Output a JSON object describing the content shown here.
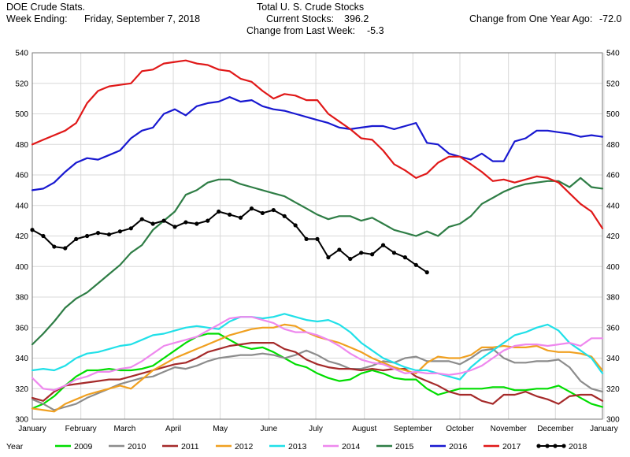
{
  "header": {
    "left_line1": "DOE Crude Stats.",
    "left_line2_label": "Week Ending:",
    "left_line2_value": "Friday, September 7, 2018",
    "center_line1": "Total U. S. Crude Stocks",
    "current_label": "Current Stocks:",
    "current_value": "396.2",
    "change_week_label": "Change from Last Week:",
    "change_week_value": "-5.3",
    "change_year_label": "Change from One Year Ago:",
    "change_year_value": "-72.0"
  },
  "chart_data": {
    "type": "line",
    "x_domain": [
      1,
      53
    ],
    "ylim": [
      300,
      540
    ],
    "y_ticks": [
      300,
      320,
      340,
      360,
      380,
      400,
      420,
      440,
      460,
      480,
      500,
      520,
      540
    ],
    "x_tick_labels": [
      "January",
      "February",
      "March",
      "April",
      "May",
      "June",
      "July",
      "August",
      "September",
      "October",
      "November",
      "December",
      "January"
    ],
    "x_tick_positions": [
      1,
      5.43,
      9.43,
      13.86,
      18.14,
      22.57,
      26.86,
      31.29,
      35.71,
      40,
      44.43,
      48.71,
      53.14
    ],
    "grid": true,
    "legend_position": "bottom",
    "legend_title": "Year",
    "series": [
      {
        "name": "2009",
        "color": "#00dd00",
        "start_week": 1,
        "values": [
          307,
          310,
          315,
          322,
          328,
          332,
          332,
          333,
          332,
          332,
          333,
          335,
          340,
          345,
          350,
          354,
          356,
          356,
          352,
          348,
          346,
          347,
          344,
          340,
          336,
          334,
          330,
          327,
          325,
          326,
          330,
          332,
          330,
          327,
          326,
          326,
          320,
          316,
          318,
          320,
          320,
          320,
          321,
          321,
          319,
          319,
          320,
          320,
          322,
          318,
          314,
          310,
          308
        ]
      },
      {
        "name": "2010",
        "color": "#8c8c8c",
        "start_week": 1,
        "values": [
          313,
          310,
          306,
          308,
          310,
          314,
          317,
          320,
          323,
          325,
          327,
          328,
          331,
          334,
          333,
          335,
          338,
          340,
          341,
          342,
          342,
          343,
          342,
          340,
          342,
          345,
          342,
          338,
          336,
          333,
          333,
          335,
          338,
          337,
          340,
          341,
          338,
          338,
          338,
          336,
          340,
          345,
          346,
          340,
          337,
          337,
          338,
          338,
          339,
          334,
          325,
          320,
          318
        ]
      },
      {
        "name": "2011",
        "color": "#a52a2a",
        "start_week": 1,
        "values": [
          314,
          312,
          318,
          322,
          323,
          324,
          325,
          326,
          326,
          328,
          330,
          332,
          334,
          336,
          337,
          340,
          344,
          346,
          348,
          349,
          350,
          350,
          350,
          346,
          344,
          339,
          336,
          334,
          333,
          333,
          332,
          333,
          332,
          333,
          333,
          328,
          325,
          322,
          318,
          316,
          316,
          312,
          310,
          316,
          316,
          318,
          315,
          313,
          310,
          315,
          316,
          316,
          312
        ]
      },
      {
        "name": "2012",
        "color": "#f0a020",
        "start_week": 1,
        "values": [
          307,
          306,
          305,
          310,
          313,
          316,
          318,
          320,
          322,
          320,
          326,
          332,
          336,
          340,
          343,
          346,
          349,
          352,
          355,
          357,
          359,
          360,
          360,
          362,
          361,
          357,
          354,
          352,
          350,
          347,
          344,
          340,
          337,
          334,
          332,
          330,
          337,
          341,
          340,
          340,
          342,
          347,
          347,
          348,
          347,
          347,
          348,
          345,
          344,
          344,
          343,
          341,
          332
        ]
      },
      {
        "name": "2013",
        "color": "#20e0e8",
        "start_week": 1,
        "values": [
          332,
          333,
          332,
          335,
          340,
          343,
          344,
          346,
          348,
          349,
          352,
          355,
          356,
          358,
          360,
          361,
          360,
          359,
          364,
          367,
          367,
          366,
          367,
          369,
          367,
          365,
          364,
          365,
          362,
          357,
          350,
          345,
          340,
          337,
          334,
          332,
          332,
          330,
          328,
          326,
          334,
          340,
          345,
          350,
          355,
          357,
          360,
          362,
          358,
          350,
          345,
          340,
          330
        ]
      },
      {
        "name": "2014",
        "color": "#ee88ee",
        "start_week": 1,
        "values": [
          327,
          320,
          319,
          322,
          326,
          328,
          331,
          331,
          333,
          334,
          338,
          343,
          348,
          350,
          352,
          354,
          358,
          362,
          366,
          367,
          367,
          365,
          363,
          359,
          357,
          357,
          355,
          352,
          348,
          343,
          339,
          337,
          336,
          333,
          330,
          331,
          330,
          330,
          329,
          330,
          332,
          335,
          340,
          345,
          348,
          349,
          349,
          348,
          349,
          350,
          348,
          353,
          353
        ]
      },
      {
        "name": "2015",
        "color": "#2e7d45",
        "start_week": 1,
        "values": [
          349,
          356,
          364,
          373,
          379,
          383,
          389,
          395,
          401,
          409,
          414,
          424,
          430,
          436,
          447,
          450,
          455,
          457,
          457,
          454,
          452,
          450,
          448,
          446,
          442,
          438,
          434,
          431,
          433,
          433,
          430,
          432,
          428,
          424,
          422,
          420,
          423,
          420,
          426,
          428,
          433,
          441,
          445,
          449,
          452,
          454,
          455,
          456,
          456,
          452,
          458,
          452,
          451
        ]
      },
      {
        "name": "2016",
        "color": "#1818d0",
        "start_week": 1,
        "values": [
          450,
          451,
          455,
          462,
          468,
          471,
          470,
          473,
          476,
          484,
          489,
          491,
          500,
          503,
          499,
          505,
          507,
          508,
          511,
          508,
          509,
          505,
          503,
          502,
          500,
          498,
          496,
          494,
          491,
          490,
          491,
          492,
          492,
          490,
          492,
          494,
          481,
          480,
          474,
          472,
          470,
          474,
          469,
          469,
          482,
          484,
          489,
          489,
          488,
          487,
          485,
          486,
          485
        ]
      },
      {
        "name": "2017",
        "color": "#e01818",
        "start_week": 1,
        "values": [
          480,
          483,
          486,
          489,
          494,
          507,
          515,
          518,
          519,
          520,
          528,
          529,
          533,
          534,
          535,
          533,
          532,
          529,
          528,
          523,
          521,
          515,
          510,
          513,
          512,
          509,
          509,
          500,
          495,
          490,
          484,
          483,
          476,
          467,
          463,
          458,
          461,
          468,
          472,
          472,
          467,
          462,
          456,
          457,
          455,
          457,
          459,
          458,
          455,
          448,
          441,
          436,
          425
        ]
      },
      {
        "name": "2018",
        "color": "#000000",
        "start_week": 1,
        "values": [
          424,
          420,
          413,
          412,
          418,
          420,
          422,
          421,
          423,
          425,
          431,
          428,
          430,
          426,
          429,
          428,
          430,
          436,
          434,
          432,
          438,
          435,
          437,
          433,
          427,
          418,
          418,
          406,
          411,
          405,
          409,
          408,
          414,
          409,
          406,
          401,
          396.2
        ]
      }
    ]
  }
}
